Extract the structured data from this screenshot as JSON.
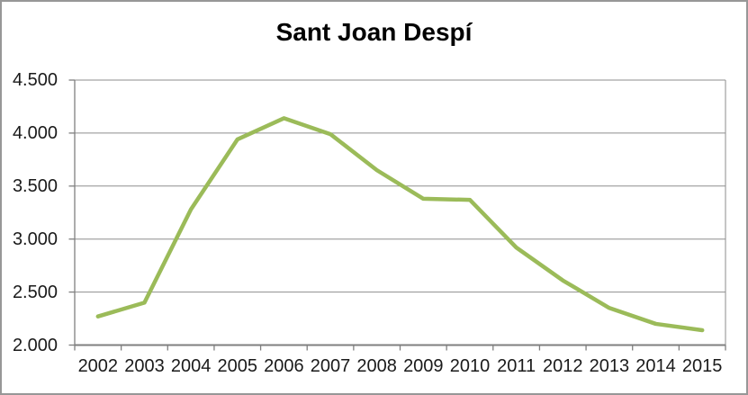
{
  "window": {
    "background_color": "#ffffff",
    "border_color": "#979797"
  },
  "chart_data": {
    "type": "line",
    "title": "Sant Joan Despí",
    "x": [
      "2002",
      "2003",
      "2004",
      "2005",
      "2006",
      "2007",
      "2008",
      "2009",
      "2010",
      "2011",
      "2012",
      "2013",
      "2014",
      "2015"
    ],
    "series": [
      {
        "name": "Sant Joan Despí",
        "values": [
          2270,
          2400,
          3280,
          3940,
          4140,
          3990,
          3650,
          3380,
          3370,
          2920,
          2610,
          2350,
          2200,
          2140
        ]
      }
    ],
    "xlabel": "",
    "ylabel": "",
    "ylim": [
      2000,
      4500
    ],
    "ytick_step": 500,
    "ytick_labels": [
      "2.000",
      "2.500",
      "3.000",
      "3.500",
      "4.000",
      "4.500"
    ],
    "grid": true,
    "legend_position": "none",
    "line_color": "#9BBB59",
    "gridline_color": "#8e8e8e",
    "axis_color": "#7f7f7f",
    "label_color": "#1a1a1a",
    "title_color": "#000000"
  }
}
